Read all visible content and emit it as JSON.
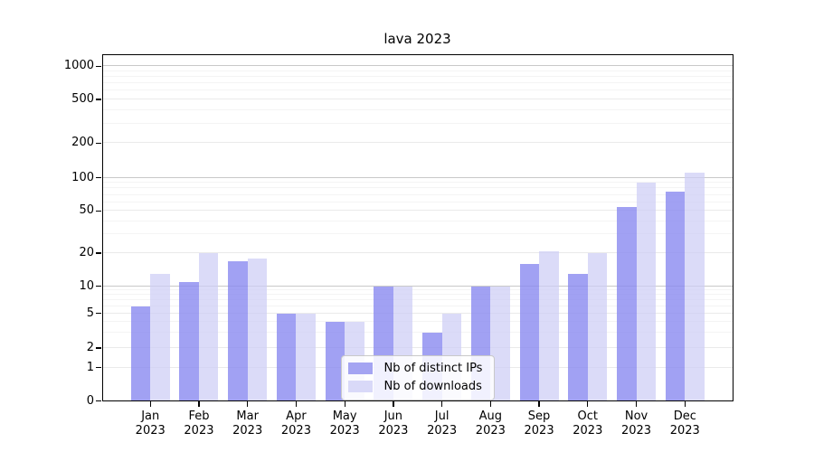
{
  "figure": {
    "title": "lava 2023"
  },
  "legend": {
    "items": [
      {
        "label": "Nb of distinct IPs",
        "color": "#a4a4f2"
      },
      {
        "label": "Nb of downloads",
        "color": "#d9d9f8"
      }
    ]
  },
  "chart_data": {
    "type": "bar",
    "title": "lava 2023",
    "categories": [
      "Jan 2023",
      "Feb 2023",
      "Mar 2023",
      "Apr 2023",
      "May 2023",
      "Jun 2023",
      "Jul 2023",
      "Aug 2023",
      "Sep 2023",
      "Oct 2023",
      "Nov 2023",
      "Dec 2023"
    ],
    "series": [
      {
        "name": "Nb of distinct IPs",
        "color": "#a4a4f2",
        "fill": "rgba(138,138,240,0.80)",
        "values": [
          6,
          11,
          17,
          5,
          4,
          10,
          3,
          10,
          16,
          13,
          54,
          75
        ]
      },
      {
        "name": "Nb of downloads",
        "color": "#d9d9f8",
        "fill": "rgba(205,205,246,0.73)",
        "values": [
          13,
          20,
          18,
          5,
          4,
          10,
          5,
          10,
          21,
          20,
          90,
          110
        ]
      }
    ],
    "xlabel": "",
    "ylabel": "",
    "y_ticks": [
      0,
      1,
      2,
      5,
      10,
      20,
      50,
      100,
      200,
      500,
      1000
    ],
    "y_scale": "log-like",
    "ylim": [
      0,
      1300
    ],
    "grid": true,
    "legend_position": "lower center"
  }
}
